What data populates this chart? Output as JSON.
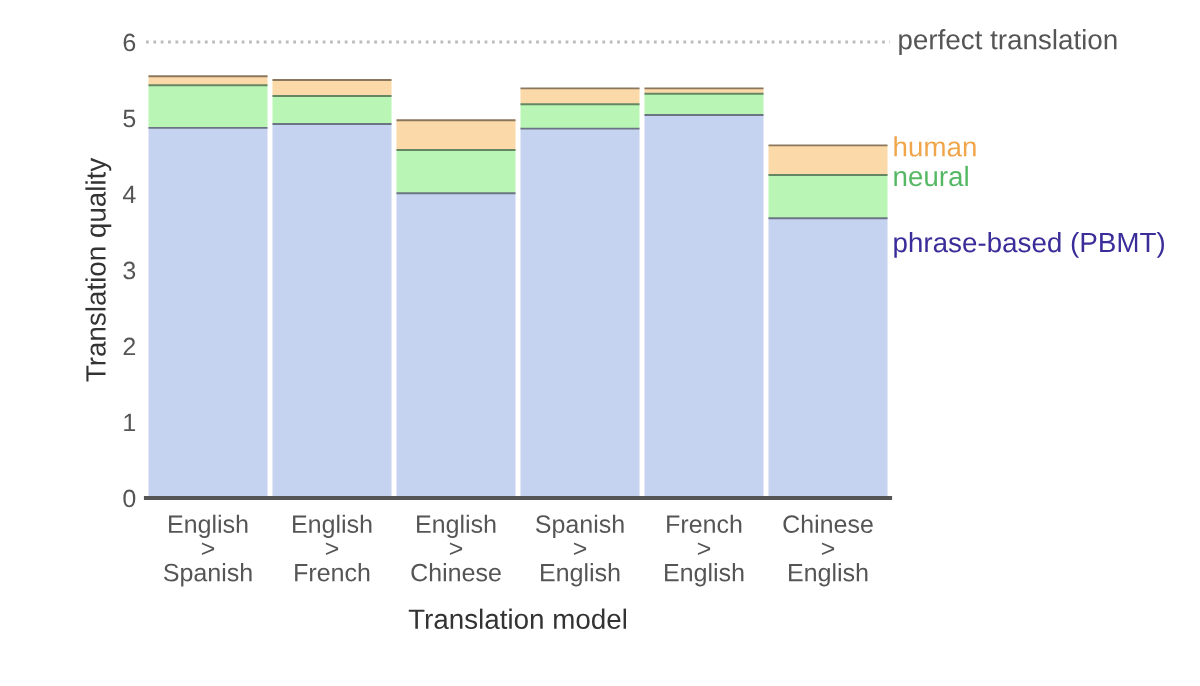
{
  "chart_data": {
    "type": "bar",
    "stacked": true,
    "categories": [
      "English\n>\nSpanish",
      "English\n>\nFrench",
      "English\n>\nChinese",
      "Spanish\n>\nEnglish",
      "French\n>\nEnglish",
      "Chinese\n>\nEnglish"
    ],
    "series": [
      {
        "name": "phrase-based (PBMT)",
        "color": "#c5d3f0",
        "values": [
          4.87,
          4.92,
          4.01,
          4.86,
          5.04,
          3.68
        ]
      },
      {
        "name": "neural",
        "color": "#b9f5b5",
        "values": [
          0.56,
          0.37,
          0.57,
          0.32,
          0.28,
          0.57
        ]
      },
      {
        "name": "human",
        "color": "#fbd9a8",
        "values": [
          0.12,
          0.21,
          0.39,
          0.21,
          0.07,
          0.39
        ]
      }
    ],
    "xlabel": "Translation model",
    "ylabel": "Translation quality",
    "ylim": [
      0,
      6
    ],
    "yticks": [
      0,
      1,
      2,
      3,
      4,
      5,
      6
    ],
    "grid": false,
    "ref_lines": [
      {
        "axis": "y",
        "value": 6,
        "label": "perfect translation",
        "color": "#bbbbbb",
        "line_style": "dotted"
      }
    ]
  }
}
